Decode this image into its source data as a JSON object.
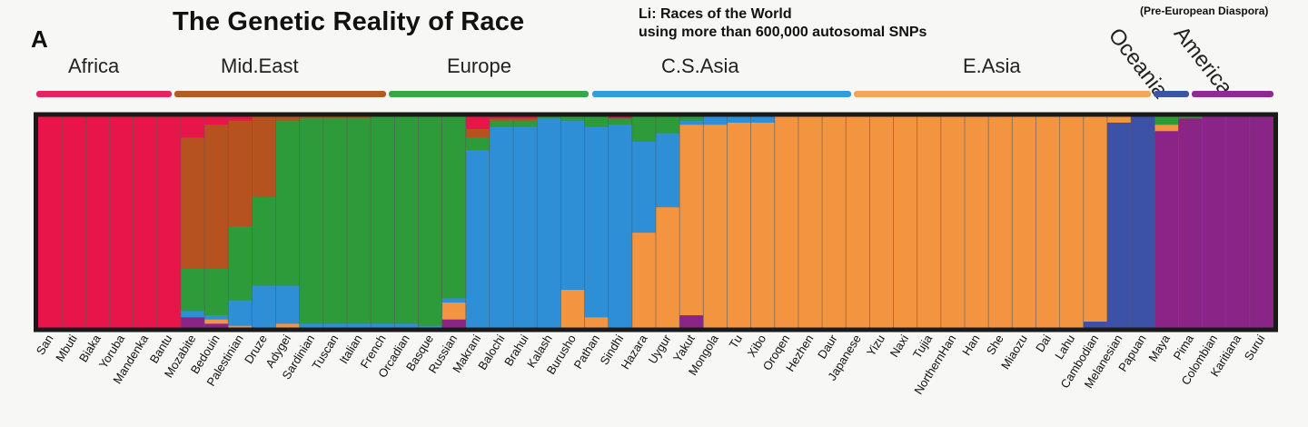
{
  "panel_letter": "A",
  "title": "The Genetic Reality of Race",
  "subtitle_line1": "Li:  Races of the World",
  "subtitle_line2": "using more than 600,000 autosomal SNPs",
  "note": "(Pre-European Diaspora)",
  "colors": {
    "africa": "#e8154a",
    "mideast": "#b5521f",
    "europe": "#2e9b3a",
    "csasia": "#2e8fd6",
    "easia": "#f39440",
    "oceania": "#3b52a6",
    "america": "#8b2487"
  },
  "regions": [
    {
      "label": "Africa",
      "color": "#e5245f"
    },
    {
      "label": "Mid.East",
      "color": "#b35b24"
    },
    {
      "label": "Europe",
      "color": "#35a847"
    },
    {
      "label": "C.S.Asia",
      "color": "#2f9ee0"
    },
    {
      "label": "E.Asia",
      "color": "#f5a553"
    },
    {
      "label": "Oceania",
      "color": "#3955a5"
    },
    {
      "label": "America",
      "color": "#8e2a91"
    }
  ],
  "chart_data": {
    "type": "bar",
    "subtype": "stacked-admixture",
    "ylim": [
      0,
      1
    ],
    "ancestry_components": [
      "Africa",
      "Mid.East",
      "Europe",
      "C.S.Asia",
      "E.Asia",
      "Oceania",
      "America"
    ],
    "series_colors": [
      "#e8154a",
      "#b5521f",
      "#2e9b3a",
      "#2e8fd6",
      "#f39440",
      "#3b52a6",
      "#8b2487"
    ],
    "categories": [
      "San",
      "Mbuti",
      "Biaka",
      "Yoruba",
      "Mandenka",
      "Bantu",
      "Mozabite",
      "Bedouin",
      "Palestinian",
      "Druze",
      "Adygei",
      "Sardinian",
      "Tuscan",
      "Italian",
      "French",
      "Orcadian",
      "Basque",
      "Russian",
      "Makrani",
      "Balochi",
      "Brahui",
      "Kalash",
      "Burusho",
      "Pathan",
      "Sindhi",
      "Hazara",
      "Uygur",
      "Yakut",
      "Mongola",
      "Tu",
      "Xibo",
      "Oroqen",
      "Hezhen",
      "Daur",
      "Japanese",
      "Yizu",
      "Naxi",
      "Tujia",
      "NorthernHan",
      "Han",
      "She",
      "Miaozu",
      "Dai",
      "Lahu",
      "Cambodian",
      "Melanesian",
      "Papuan",
      "Maya",
      "Pima",
      "Colombian",
      "Karitiana",
      "Surui"
    ],
    "populations": [
      {
        "name": "San",
        "region": "Africa",
        "values": [
          1,
          0,
          0,
          0,
          0,
          0,
          0
        ]
      },
      {
        "name": "Mbuti",
        "region": "Africa",
        "values": [
          1,
          0,
          0,
          0,
          0,
          0,
          0
        ]
      },
      {
        "name": "Biaka",
        "region": "Africa",
        "values": [
          1,
          0,
          0,
          0,
          0,
          0,
          0
        ]
      },
      {
        "name": "Yoruba",
        "region": "Africa",
        "values": [
          1,
          0,
          0,
          0,
          0,
          0,
          0
        ]
      },
      {
        "name": "Mandenka",
        "region": "Africa",
        "values": [
          1,
          0,
          0,
          0,
          0,
          0,
          0
        ]
      },
      {
        "name": "Bantu",
        "region": "Africa",
        "values": [
          1,
          0,
          0,
          0,
          0,
          0,
          0
        ]
      },
      {
        "name": "Mozabite",
        "region": "Mid.East",
        "values": [
          0.1,
          0.62,
          0.2,
          0.03,
          0,
          0,
          0.05
        ]
      },
      {
        "name": "Bedouin",
        "region": "Mid.East",
        "values": [
          0.04,
          0.68,
          0.22,
          0.02,
          0.02,
          0,
          0.02
        ]
      },
      {
        "name": "Palestinian",
        "region": "Mid.East",
        "values": [
          0.02,
          0.5,
          0.35,
          0.12,
          0.01,
          0,
          0
        ]
      },
      {
        "name": "Druze",
        "region": "Mid.East",
        "values": [
          0,
          0.38,
          0.42,
          0.2,
          0,
          0,
          0
        ]
      },
      {
        "name": "Adygei",
        "region": "Europe",
        "values": [
          0,
          0.02,
          0.78,
          0.18,
          0.02,
          0,
          0
        ]
      },
      {
        "name": "Sardinian",
        "region": "Europe",
        "values": [
          0,
          0.01,
          0.97,
          0.02,
          0,
          0,
          0
        ]
      },
      {
        "name": "Tuscan",
        "region": "Europe",
        "values": [
          0,
          0.01,
          0.97,
          0.02,
          0,
          0,
          0
        ]
      },
      {
        "name": "Italian",
        "region": "Europe",
        "values": [
          0,
          0.01,
          0.97,
          0.02,
          0,
          0,
          0
        ]
      },
      {
        "name": "French",
        "region": "Europe",
        "values": [
          0,
          0,
          0.98,
          0.02,
          0,
          0,
          0
        ]
      },
      {
        "name": "Orcadian",
        "region": "Europe",
        "values": [
          0,
          0,
          0.98,
          0.02,
          0,
          0,
          0
        ]
      },
      {
        "name": "Basque",
        "region": "Europe",
        "values": [
          0,
          0,
          0.99,
          0.01,
          0,
          0,
          0
        ]
      },
      {
        "name": "Russian",
        "region": "Europe",
        "values": [
          0,
          0,
          0.86,
          0.02,
          0.08,
          0,
          0.04
        ]
      },
      {
        "name": "Makrani",
        "region": "C.S.Asia",
        "values": [
          0.06,
          0.04,
          0.06,
          0.84,
          0,
          0,
          0
        ]
      },
      {
        "name": "Balochi",
        "region": "C.S.Asia",
        "values": [
          0.01,
          0.01,
          0.03,
          0.95,
          0,
          0,
          0
        ]
      },
      {
        "name": "Brahui",
        "region": "C.S.Asia",
        "values": [
          0.01,
          0.01,
          0.03,
          0.95,
          0,
          0,
          0
        ]
      },
      {
        "name": "Kalash",
        "region": "C.S.Asia",
        "values": [
          0,
          0,
          0.01,
          0.99,
          0,
          0,
          0
        ]
      },
      {
        "name": "Burusho",
        "region": "C.S.Asia",
        "values": [
          0,
          0,
          0.02,
          0.8,
          0.18,
          0,
          0
        ]
      },
      {
        "name": "Pathan",
        "region": "C.S.Asia",
        "values": [
          0,
          0,
          0.05,
          0.9,
          0.05,
          0,
          0
        ]
      },
      {
        "name": "Sindhi",
        "region": "C.S.Asia",
        "values": [
          0.01,
          0,
          0.03,
          0.96,
          0,
          0,
          0
        ]
      },
      {
        "name": "Hazara",
        "region": "C.S.Asia",
        "values": [
          0,
          0,
          0.12,
          0.43,
          0.45,
          0,
          0
        ]
      },
      {
        "name": "Uygur",
        "region": "C.S.Asia",
        "values": [
          0,
          0,
          0.08,
          0.35,
          0.57,
          0,
          0
        ]
      },
      {
        "name": "Yakut",
        "region": "E.Asia",
        "values": [
          0,
          0,
          0.02,
          0.02,
          0.9,
          0,
          0.06
        ]
      },
      {
        "name": "Mongola",
        "region": "E.Asia",
        "values": [
          0,
          0,
          0,
          0.04,
          0.96,
          0,
          0
        ]
      },
      {
        "name": "Tu",
        "region": "E.Asia",
        "values": [
          0,
          0,
          0,
          0.03,
          0.97,
          0,
          0
        ]
      },
      {
        "name": "Xibo",
        "region": "E.Asia",
        "values": [
          0,
          0,
          0,
          0.03,
          0.97,
          0,
          0
        ]
      },
      {
        "name": "Oroqen",
        "region": "E.Asia",
        "values": [
          0,
          0,
          0,
          0,
          1,
          0,
          0
        ]
      },
      {
        "name": "Hezhen",
        "region": "E.Asia",
        "values": [
          0,
          0,
          0,
          0,
          1,
          0,
          0
        ]
      },
      {
        "name": "Daur",
        "region": "E.Asia",
        "values": [
          0,
          0,
          0,
          0,
          1,
          0,
          0
        ]
      },
      {
        "name": "Japanese",
        "region": "E.Asia",
        "values": [
          0,
          0,
          0,
          0,
          1,
          0,
          0
        ]
      },
      {
        "name": "Yizu",
        "region": "E.Asia",
        "values": [
          0,
          0,
          0,
          0,
          1,
          0,
          0
        ]
      },
      {
        "name": "Naxi",
        "region": "E.Asia",
        "values": [
          0,
          0,
          0,
          0,
          1,
          0,
          0
        ]
      },
      {
        "name": "Tujia",
        "region": "E.Asia",
        "values": [
          0,
          0,
          0,
          0,
          1,
          0,
          0
        ]
      },
      {
        "name": "NorthernHan",
        "region": "E.Asia",
        "values": [
          0,
          0,
          0,
          0,
          1,
          0,
          0
        ]
      },
      {
        "name": "Han",
        "region": "E.Asia",
        "values": [
          0,
          0,
          0,
          0,
          1,
          0,
          0
        ]
      },
      {
        "name": "She",
        "region": "E.Asia",
        "values": [
          0,
          0,
          0,
          0,
          1,
          0,
          0
        ]
      },
      {
        "name": "Miaozu",
        "region": "E.Asia",
        "values": [
          0,
          0,
          0,
          0,
          1,
          0,
          0
        ]
      },
      {
        "name": "Dai",
        "region": "E.Asia",
        "values": [
          0,
          0,
          0,
          0,
          1,
          0,
          0
        ]
      },
      {
        "name": "Lahu",
        "region": "E.Asia",
        "values": [
          0,
          0,
          0,
          0,
          1,
          0,
          0
        ]
      },
      {
        "name": "Cambodian",
        "region": "E.Asia",
        "values": [
          0,
          0,
          0,
          0,
          0.97,
          0.03,
          0
        ]
      },
      {
        "name": "Melanesian",
        "region": "Oceania",
        "values": [
          0,
          0,
          0,
          0,
          0.03,
          0.97,
          0
        ]
      },
      {
        "name": "Papuan",
        "region": "Oceania",
        "values": [
          0,
          0,
          0,
          0,
          0,
          1,
          0
        ]
      },
      {
        "name": "Maya",
        "region": "America",
        "values": [
          0,
          0,
          0.04,
          0,
          0.03,
          0,
          0.93
        ]
      },
      {
        "name": "Pima",
        "region": "America",
        "values": [
          0,
          0,
          0.01,
          0,
          0,
          0,
          0.99
        ]
      },
      {
        "name": "Colombian",
        "region": "America",
        "values": [
          0,
          0,
          0,
          0,
          0,
          0,
          1
        ]
      },
      {
        "name": "Karitiana",
        "region": "America",
        "values": [
          0,
          0,
          0,
          0,
          0,
          0,
          1
        ]
      },
      {
        "name": "Surui",
        "region": "America",
        "values": [
          0,
          0,
          0,
          0,
          0,
          0,
          1
        ]
      }
    ]
  }
}
